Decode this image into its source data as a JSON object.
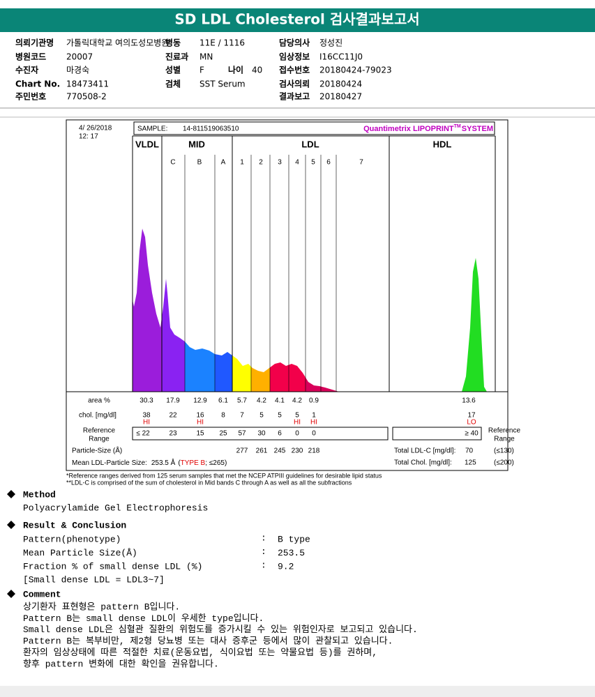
{
  "header": {
    "title": "SD LDL Cholesterol 검사결과보고서"
  },
  "info": {
    "rows": [
      [
        {
          "label": "의뢰기관명",
          "value": "가톨릭대학교 여의도성모병원"
        },
        {
          "label": "병동",
          "value": "11E / 1116"
        },
        {
          "label": "담당의사",
          "value": "정성진"
        }
      ],
      [
        {
          "label": "병원코드",
          "value": "20007"
        },
        {
          "label": "진료과",
          "value": "MN"
        },
        {
          "label": "임상정보",
          "value": "I16CC11J0"
        }
      ],
      [
        {
          "label": "수진자",
          "value": "마경숙"
        },
        {
          "label": "성별",
          "value": "F"
        },
        {
          "label": "접수번호",
          "value": "20180424-79023"
        }
      ],
      [
        {
          "label": "Chart No.",
          "value": "18473411"
        },
        {
          "label": "검체",
          "value": "SST Serum"
        },
        {
          "label": "검사의뢰",
          "value": "20180424"
        }
      ],
      [
        {
          "label": "주민번호",
          "value": "770508-2"
        },
        {
          "label": "결과보고",
          "value": "20180427"
        }
      ]
    ],
    "age_label": "나이",
    "age_value": "40"
  },
  "report": {
    "date": "4/ 26/2018",
    "time": "12: 17",
    "sample_label": "SAMPLE:",
    "sample_id": "14-811519063510",
    "brand": "Quantimetrix LIPOPRINT",
    "brand_tm": "TM",
    "brand_tail": "SYSTEM",
    "bands": [
      "VLDL",
      "MID",
      "LDL",
      "HDL"
    ],
    "sub_bands": [
      "C",
      "B",
      "A",
      "1",
      "2",
      "3",
      "4",
      "5",
      "6",
      "7"
    ],
    "area_label": "area %",
    "area": [
      30.3,
      17.9,
      12.9,
      6.1,
      5.7,
      4.2,
      4.1,
      4.2,
      0.9
    ],
    "hdl_area": 13.6,
    "chol_label": "chol. [mg/dl]",
    "chol": [
      38,
      22,
      16,
      8,
      7,
      5,
      5,
      5,
      1
    ],
    "hdl_chol": 17,
    "chol_flags": [
      "HI",
      null,
      "HI",
      null,
      null,
      null,
      null,
      "HI",
      "HI"
    ],
    "hdl_flag": "LO",
    "ref_label": [
      "Reference",
      "Range"
    ],
    "ref": [
      "≤ 22",
      23,
      15,
      25,
      57,
      30,
      6,
      0,
      0
    ],
    "hdl_ref": "≥ 40",
    "size_label": "Particle-Size (Å)",
    "sizes": [
      277,
      261,
      245,
      230,
      218
    ],
    "total_ldl_label": "Total LDL-C [mg/dl]:",
    "total_ldl": 70,
    "total_ldl_ref": "(≤130)",
    "mean_label": "Mean LDL-Particle Size:",
    "mean_value": "253.5 Å",
    "type_open": "(",
    "type": "TYPE B",
    "type_close": "; ≤265)",
    "total_chol_label": "Total Chol. [mg/dl]:",
    "total_chol": 125,
    "total_chol_ref": "(≤200)",
    "footnotes": [
      "*Reference ranges derived from 125 serum samples that met the NCEP ATPIII guidelines for desirable lipid status",
      "**LDL-C is comprised of the sum of cholesterol in Mid bands C through A as well as all the subfractions"
    ]
  },
  "method": {
    "heading": "Method",
    "text": "Polyacrylamide Gel Electrophoresis"
  },
  "result": {
    "heading": "Result & Conclusion",
    "separator": ":",
    "rows": [
      {
        "label": "Pattern(phenotype)",
        "value": "B type"
      },
      {
        "label": "Mean Particle Size(Å)",
        "value": "253.5"
      },
      {
        "label": "Fraction % of small dense LDL (%)",
        "value": "9.2"
      }
    ],
    "note": "[Small dense LDL = LDL3~7]"
  },
  "comment": {
    "heading": "Comment",
    "lines": [
      "상기환자 표현형은 pattern B입니다.",
      "Pattern B는 small dense LDL이 우세한 type입니다.",
      "Small dense LDL은 심혈관 질환의 위험도를 증가시킬 수 있는 위험인자로 보고되고 있습니다.",
      "Pattern B는 복부비만, 제2형 당뇨병 또는 대사 증후군 등에서 많이 관찰되고 있습니다.",
      "환자의 임상상태에 따른 적절한 치료(운동요법, 식이요법 또는 약물요법 등)를 권하며,",
      "향후 pattern 변화에 대한 확인을 권유합니다."
    ]
  }
}
